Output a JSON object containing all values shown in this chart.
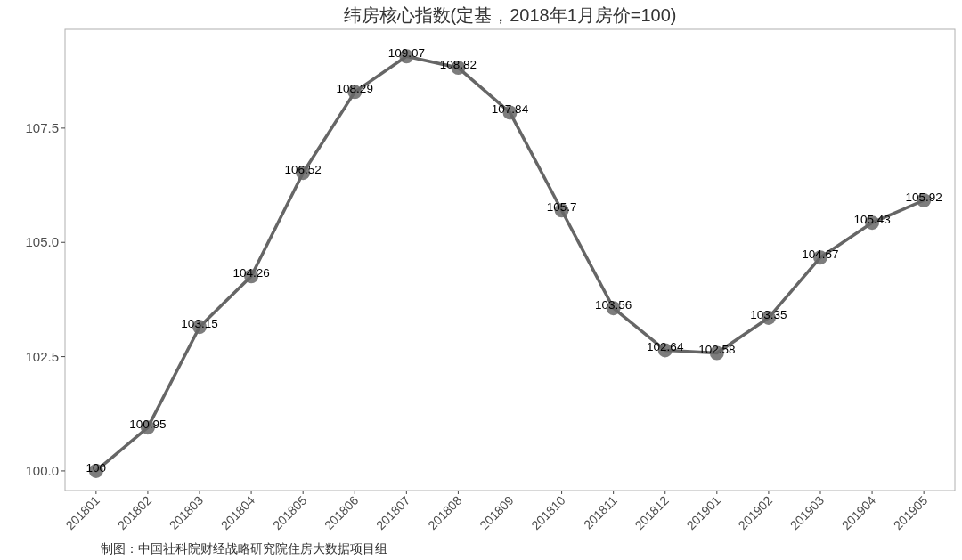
{
  "chart_data": {
    "type": "line",
    "title": "纬房核心指数(定基，2018年1月房价=100)",
    "categories": [
      "201801",
      "201802",
      "201803",
      "201804",
      "201805",
      "201806",
      "201807",
      "201808",
      "201809",
      "201810",
      "201811",
      "201812",
      "201901",
      "201902",
      "201903",
      "201904",
      "201905"
    ],
    "series": [
      {
        "color": "#666666",
        "values": [
          100,
          100.95,
          103.15,
          104.26,
          106.52,
          108.29,
          109.07,
          108.82,
          107.84,
          105.7,
          103.56,
          102.64,
          102.58,
          103.35,
          104.67,
          105.43,
          105.92
        ]
      }
    ],
    "ylim": [
      99.57,
      109.66
    ],
    "yticks": [
      {
        "value": 100,
        "label": "100.0"
      },
      102.5,
      {
        "value": 105,
        "label": "105.0"
      },
      107.5
    ],
    "marker": "circle",
    "data_labels": true,
    "annotations": [
      "制图：中国社科院财经战略研究院住房大数据项目组"
    ]
  }
}
